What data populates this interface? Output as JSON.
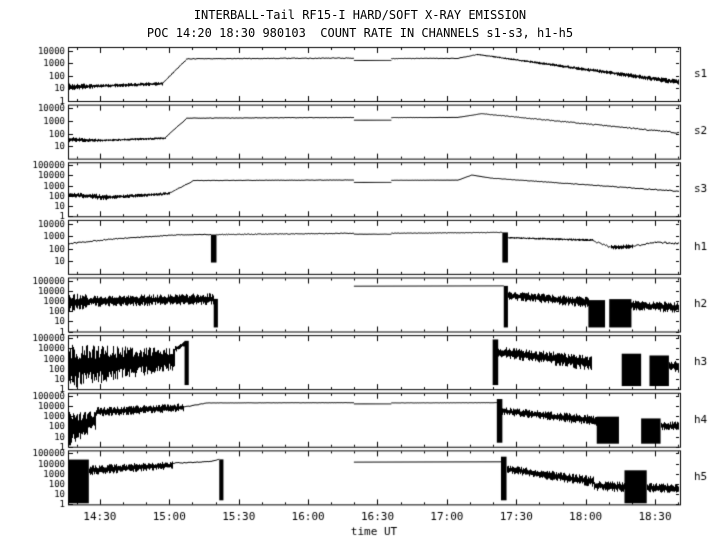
{
  "page": {
    "title_line1": "INTERBALL-Tail RF15-I HARD/SOFT X-RAY EMISSION",
    "title_line2": "POC 14:20 18:30 980103  COUNT RATE IN CHANNELS s1-s3, h1-h5"
  },
  "chart_data": {
    "type": "line",
    "title": "INTERBALL-Tail RF15-I HARD/SOFT X-RAY EMISSION",
    "subtitle": "POC 14:20 18:30 980103  COUNT RATE IN CHANNELS s1-s3, h1-h5",
    "xlabel": "time UT",
    "yscale": "log",
    "ink_color": "#000000",
    "background_color": "#ffffff",
    "axis": {
      "tmin": 14.27,
      "tmax": 18.68,
      "minor_step_hours": 0.166667,
      "xticks": [
        {
          "t": 14.5,
          "label": "14:30"
        },
        {
          "t": 15.0,
          "label": "15:00"
        },
        {
          "t": 15.5,
          "label": "15:30"
        },
        {
          "t": 16.0,
          "label": "16:00"
        },
        {
          "t": 16.5,
          "label": "16:30"
        },
        {
          "t": 17.0,
          "label": "17:00"
        },
        {
          "t": 17.5,
          "label": "17:30"
        },
        {
          "t": 18.0,
          "label": "18:00"
        },
        {
          "t": 18.5,
          "label": "18:30"
        }
      ]
    },
    "segment_format": "[t0,t1,style,...] ; style 'line'/'band': [t0,t1,style,v0,v1,noise0_dex,noise1_dex] counts/s interpolated in log10 ; style 'fill': [t0,t1,'fill',lo,hi] solid black block between count levels ; absent time ranges = data gap",
    "panels": [
      {
        "label": "s1",
        "ymin_exp": 0,
        "ymax_exp": 4.3,
        "yticks": [
          10000,
          1000,
          100,
          10,
          1
        ],
        "segments": [
          [
            14.27,
            14.45,
            "band",
            13,
            15,
            0.3,
            0.2
          ],
          [
            14.45,
            14.95,
            "band",
            15,
            24,
            0.15,
            0.15
          ],
          [
            14.95,
            15.12,
            "line",
            26,
            1800,
            0.05,
            0.03
          ],
          [
            15.12,
            16.33,
            "line",
            2300,
            2600,
            0.03,
            0.03
          ],
          [
            16.33,
            16.6,
            "line",
            1700,
            1700,
            0,
            0
          ],
          [
            16.6,
            17.08,
            "line",
            2400,
            2500,
            0.02,
            0.02
          ],
          [
            17.08,
            17.22,
            "line",
            2500,
            5000,
            0.02,
            0.02
          ],
          [
            17.22,
            18.68,
            "band",
            5000,
            30,
            0.05,
            0.22
          ]
        ]
      },
      {
        "label": "s2",
        "ymin_exp": 0,
        "ymax_exp": 4.3,
        "yticks": [
          10000,
          1000,
          100,
          10
        ],
        "segments": [
          [
            14.27,
            14.5,
            "band",
            34,
            28,
            0.22,
            0.12
          ],
          [
            14.5,
            14.97,
            "band",
            28,
            42,
            0.1,
            0.1
          ],
          [
            14.97,
            15.12,
            "line",
            46,
            1400,
            0.03,
            0.02
          ],
          [
            15.12,
            16.33,
            "line",
            1650,
            1900,
            0.02,
            0.02
          ],
          [
            16.33,
            16.6,
            "line",
            1150,
            1150,
            0,
            0
          ],
          [
            16.6,
            17.08,
            "line",
            1850,
            1900,
            0.01,
            0.01
          ],
          [
            17.08,
            17.25,
            "line",
            1900,
            3800,
            0.01,
            0.01
          ],
          [
            17.25,
            18.68,
            "line",
            3800,
            110,
            0.02,
            0.06
          ]
        ]
      },
      {
        "label": "s3",
        "ymin_exp": 0,
        "ymax_exp": 5.3,
        "yticks": [
          100000,
          10000,
          1000,
          100,
          10,
          1
        ],
        "segments": [
          [
            14.27,
            14.55,
            "band",
            140,
            70,
            0.25,
            0.3
          ],
          [
            14.55,
            15.0,
            "band",
            70,
            170,
            0.2,
            0.15
          ],
          [
            15.0,
            15.17,
            "line",
            190,
            2800,
            0.04,
            0.03
          ],
          [
            15.17,
            16.33,
            "line",
            3200,
            3600,
            0.02,
            0.02
          ],
          [
            16.33,
            16.6,
            "line",
            2100,
            2100,
            0,
            0
          ],
          [
            16.6,
            17.08,
            "line",
            3400,
            3500,
            0.01,
            0.01
          ],
          [
            17.08,
            17.18,
            "line",
            3500,
            11000,
            0.01,
            0.01
          ],
          [
            17.18,
            17.32,
            "line",
            11000,
            5500,
            0.01,
            0.01
          ],
          [
            17.32,
            18.68,
            "line",
            5500,
            280,
            0.02,
            0.05
          ]
        ]
      },
      {
        "label": "h1",
        "ymin_exp": 0,
        "ymax_exp": 4.3,
        "yticks": [
          10000,
          1000,
          100,
          10
        ],
        "segments": [
          [
            14.27,
            14.6,
            "line",
            260,
            600,
            0.07,
            0.05
          ],
          [
            14.6,
            15.05,
            "line",
            600,
            1250,
            0.04,
            0.03
          ],
          [
            15.05,
            15.3,
            "line",
            1300,
            1350,
            0.03,
            0.03
          ],
          [
            15.3,
            15.34,
            "fill",
            8,
            1350
          ],
          [
            15.34,
            16.33,
            "line",
            1350,
            1700,
            0.03,
            0.03
          ],
          [
            16.33,
            16.6,
            "line",
            1450,
            1450,
            0.01,
            0.01
          ],
          [
            16.6,
            17.4,
            "line",
            1700,
            2000,
            0.02,
            0.02
          ],
          [
            17.4,
            17.44,
            "fill",
            8,
            2000
          ],
          [
            17.44,
            18.05,
            "band",
            750,
            480,
            0.07,
            0.1
          ],
          [
            18.05,
            18.18,
            "line",
            480,
            130,
            0.08,
            0.12
          ],
          [
            18.18,
            18.34,
            "band",
            130,
            160,
            0.22,
            0.18
          ],
          [
            18.34,
            18.5,
            "line",
            160,
            330,
            0.08,
            0.06
          ],
          [
            18.5,
            18.68,
            "line",
            330,
            240,
            0.06,
            0.09
          ]
        ]
      },
      {
        "label": "h2",
        "ymin_exp": 0,
        "ymax_exp": 5.3,
        "yticks": [
          100000,
          10000,
          1000,
          100,
          10,
          1
        ],
        "segments": [
          [
            14.27,
            14.4,
            "band",
            600,
            900,
            1.1,
            0.7
          ],
          [
            14.4,
            15.32,
            "band",
            900,
            1600,
            0.55,
            0.6
          ],
          [
            15.32,
            15.35,
            "fill",
            2.5,
            1600
          ],
          [
            16.33,
            17.41,
            "line",
            28000,
            30000,
            0,
            0
          ],
          [
            17.41,
            17.44,
            "fill",
            2.5,
            30000
          ],
          [
            17.44,
            18.02,
            "band",
            3500,
            700,
            0.45,
            0.55
          ],
          [
            18.02,
            18.14,
            "fill",
            2.5,
            1200
          ],
          [
            18.17,
            18.33,
            "fill",
            2.5,
            1500
          ],
          [
            18.33,
            18.68,
            "band",
            350,
            220,
            0.5,
            0.55
          ]
        ]
      },
      {
        "label": "h3",
        "ymin_exp": 0,
        "ymax_exp": 5.3,
        "yticks": [
          100000,
          10000,
          1000,
          100,
          10,
          1
        ],
        "segments": [
          [
            14.27,
            15.04,
            "band",
            160,
            900,
            2.2,
            1.1
          ],
          [
            15.04,
            15.11,
            "band",
            9000,
            30000,
            0.35,
            0.3
          ],
          [
            15.11,
            15.14,
            "fill",
            2.5,
            55000
          ],
          [
            17.33,
            17.37,
            "fill",
            2.5,
            75000
          ],
          [
            17.37,
            18.04,
            "band",
            4500,
            350,
            0.55,
            0.8
          ],
          [
            18.26,
            18.4,
            "fill",
            2,
            3000
          ],
          [
            18.46,
            18.6,
            "fill",
            2,
            2000
          ],
          [
            18.6,
            18.68,
            "band",
            200,
            150,
            0.55,
            0.6
          ]
        ]
      },
      {
        "label": "h4",
        "ymin_exp": 0,
        "ymax_exp": 5.3,
        "yticks": [
          100000,
          10000,
          1000,
          100,
          10,
          1
        ],
        "segments": [
          [
            14.27,
            14.47,
            "band",
            60,
            400,
            1.8,
            0.9
          ],
          [
            14.47,
            15.1,
            "band",
            2500,
            7000,
            0.5,
            0.45
          ],
          [
            15.1,
            15.27,
            "line",
            8000,
            19000,
            0.05,
            0.03
          ],
          [
            15.27,
            16.33,
            "line",
            20000,
            21000,
            0.01,
            0.01
          ],
          [
            16.33,
            16.6,
            "line",
            16000,
            16000,
            0,
            0
          ],
          [
            16.6,
            17.36,
            "line",
            20000,
            21000,
            0.01,
            0.01
          ],
          [
            17.36,
            17.4,
            "fill",
            2.5,
            48000
          ],
          [
            17.4,
            18.08,
            "band",
            3200,
            350,
            0.4,
            0.55
          ],
          [
            18.08,
            18.24,
            "fill",
            2,
            900
          ],
          [
            18.4,
            18.54,
            "fill",
            2,
            600
          ],
          [
            18.54,
            18.68,
            "band",
            120,
            90,
            0.45,
            0.5
          ]
        ]
      },
      {
        "label": "h5",
        "ymin_exp": 0,
        "ymax_exp": 5.3,
        "yticks": [
          100000,
          10000,
          1000,
          100,
          10,
          1
        ],
        "segments": [
          [
            14.27,
            14.42,
            "fill",
            1.2,
            25000
          ],
          [
            14.42,
            15.02,
            "band",
            2200,
            7000,
            0.5,
            0.4
          ],
          [
            15.02,
            15.3,
            "line",
            11000,
            16000,
            0.05,
            0.03
          ],
          [
            15.3,
            15.36,
            "line",
            16000,
            26000,
            0.03,
            0.03
          ],
          [
            15.36,
            15.39,
            "fill",
            2.5,
            26000
          ],
          [
            16.33,
            17.39,
            "line",
            14000,
            15000,
            0,
            0
          ],
          [
            17.39,
            17.43,
            "fill",
            2.5,
            48000
          ],
          [
            17.43,
            18.06,
            "band",
            3000,
            160,
            0.4,
            0.55
          ],
          [
            18.06,
            18.28,
            "band",
            70,
            50,
            0.5,
            0.55
          ],
          [
            18.28,
            18.44,
            "fill",
            1.2,
            2200
          ],
          [
            18.44,
            18.68,
            "band",
            45,
            35,
            0.45,
            0.5
          ]
        ]
      }
    ]
  }
}
